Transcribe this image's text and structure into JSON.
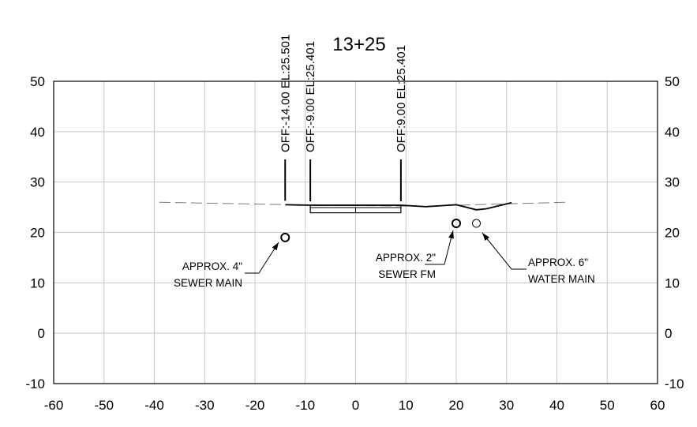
{
  "station_label": "13+25",
  "chart_data": {
    "type": "scatter",
    "xlim": [
      -60,
      60
    ],
    "ylim": [
      -10,
      50
    ],
    "x_ticks": [
      -60,
      -50,
      -40,
      -30,
      -20,
      -10,
      0,
      10,
      20,
      30,
      40,
      50,
      60
    ],
    "y_ticks": [
      50,
      40,
      30,
      20,
      10,
      0,
      -10
    ],
    "grid": true,
    "existing_ground": [
      [
        -39,
        26.0
      ],
      [
        -13,
        25.5
      ],
      [
        13,
        25.2
      ],
      [
        42,
        26.0
      ]
    ],
    "proposed_surface": [
      [
        -14,
        25.5
      ],
      [
        -9,
        25.4
      ],
      [
        9,
        25.4
      ],
      [
        14,
        25.1
      ],
      [
        20,
        25.5
      ],
      [
        24,
        24.5
      ],
      [
        26,
        24.7
      ],
      [
        31,
        25.9
      ]
    ],
    "pavement_box": {
      "x": [
        -9,
        9
      ],
      "y": [
        23.9,
        25.4
      ]
    },
    "offsets": [
      {
        "offset": -14.0,
        "elevation": 25.501,
        "label": "OFF:-14.00 EL:25.501"
      },
      {
        "offset": -9.0,
        "elevation": 25.401,
        "label": "OFF:-9.00 EL:25.401"
      },
      {
        "offset": 9.0,
        "elevation": 25.401,
        "label": "OFF:9.00 EL:25.401"
      }
    ],
    "utilities": [
      {
        "x": -14,
        "y": 19,
        "line1": "APPROX. 4\"",
        "line2": "SEWER  MAIN",
        "bold": true
      },
      {
        "x": 20,
        "y": 21.8,
        "line1": "APPROX. 2\"",
        "line2": "SEWER  FM",
        "bold": true
      },
      {
        "x": 24,
        "y": 21.8,
        "line1": "APPROX. 6\"",
        "line2": "WATER MAIN",
        "bold": false
      }
    ]
  }
}
